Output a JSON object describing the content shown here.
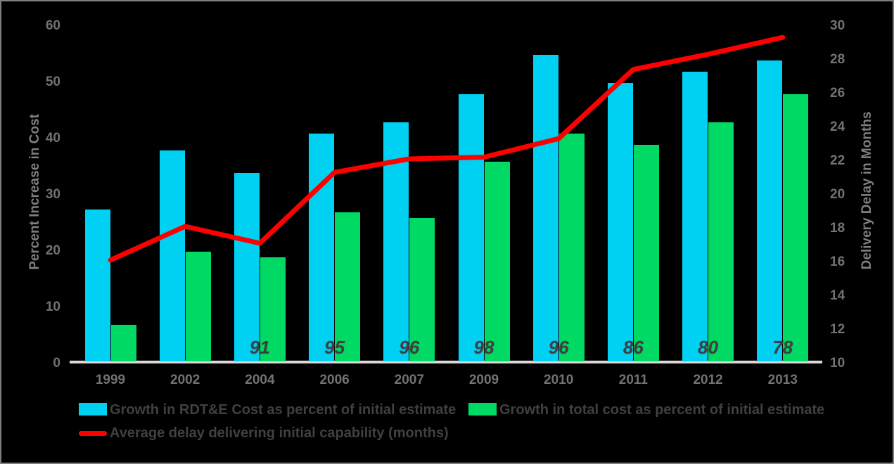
{
  "frame": {
    "background_color": "#000000",
    "border_color": "#7F7F7F"
  },
  "chart_data": {
    "type": "bar",
    "subtype": "dual-axis bar + line combo",
    "grid": "off",
    "categories": [
      "1999",
      "2002",
      "2004",
      "2006",
      "2007",
      "2009",
      "2010",
      "2011",
      "2012",
      "2013"
    ],
    "series": [
      {
        "name": "Growth in RDT&E Cost as percent of initial estimate",
        "type": "bar",
        "axis": "left",
        "color": "#00D1F2",
        "values": [
          27,
          37.5,
          33.5,
          40.5,
          42.5,
          47.5,
          54.5,
          49.5,
          51.5,
          53.5
        ]
      },
      {
        "name": "Growth in total cost as percent of initial estimate",
        "type": "bar",
        "axis": "left",
        "color": "#00DA64",
        "values": [
          6.5,
          19.5,
          18.5,
          26.5,
          25.5,
          35.5,
          40.5,
          38.5,
          42.5,
          47.5
        ]
      },
      {
        "name": "Average delay delivering initial capability (months)",
        "type": "line",
        "axis": "right",
        "color": "#FF0000",
        "values": [
          16,
          18,
          17,
          21.2,
          22,
          22.1,
          23.2,
          27.3,
          28.2,
          29.2
        ]
      }
    ],
    "annotations": {
      "description": "italic values printed near the base of each bar pair",
      "color": "#404040",
      "values_by_category": [
        null,
        null,
        "91",
        "95",
        "96",
        "98",
        "96",
        "86",
        "80",
        "78"
      ]
    },
    "left_axis": {
      "title": "Percent Increase in Cost",
      "min": 0,
      "max": 60,
      "step": 10,
      "ticks": [
        0,
        10,
        20,
        30,
        40,
        50,
        60
      ],
      "tick_color": "#727272"
    },
    "right_axis": {
      "title": "Delivery Delay in Months",
      "min": 10,
      "max": 30,
      "step": 2,
      "ticks": [
        10,
        12,
        14,
        16,
        18,
        20,
        22,
        24,
        26,
        28,
        30
      ],
      "tick_color": "#727272"
    },
    "legend": {
      "position": "bottom-left, two rows",
      "text_color": "#404040",
      "entries": [
        {
          "swatch": "rect",
          "color": "#00D1F2",
          "label": "Growth in RDT&E Cost as percent of initial estimate"
        },
        {
          "swatch": "rect",
          "color": "#00DA64",
          "label": "Growth in total cost as percent of initial estimate"
        },
        {
          "swatch": "line",
          "color": "#FF0000",
          "label": "Average delay delivering initial capability (months)"
        }
      ]
    }
  }
}
